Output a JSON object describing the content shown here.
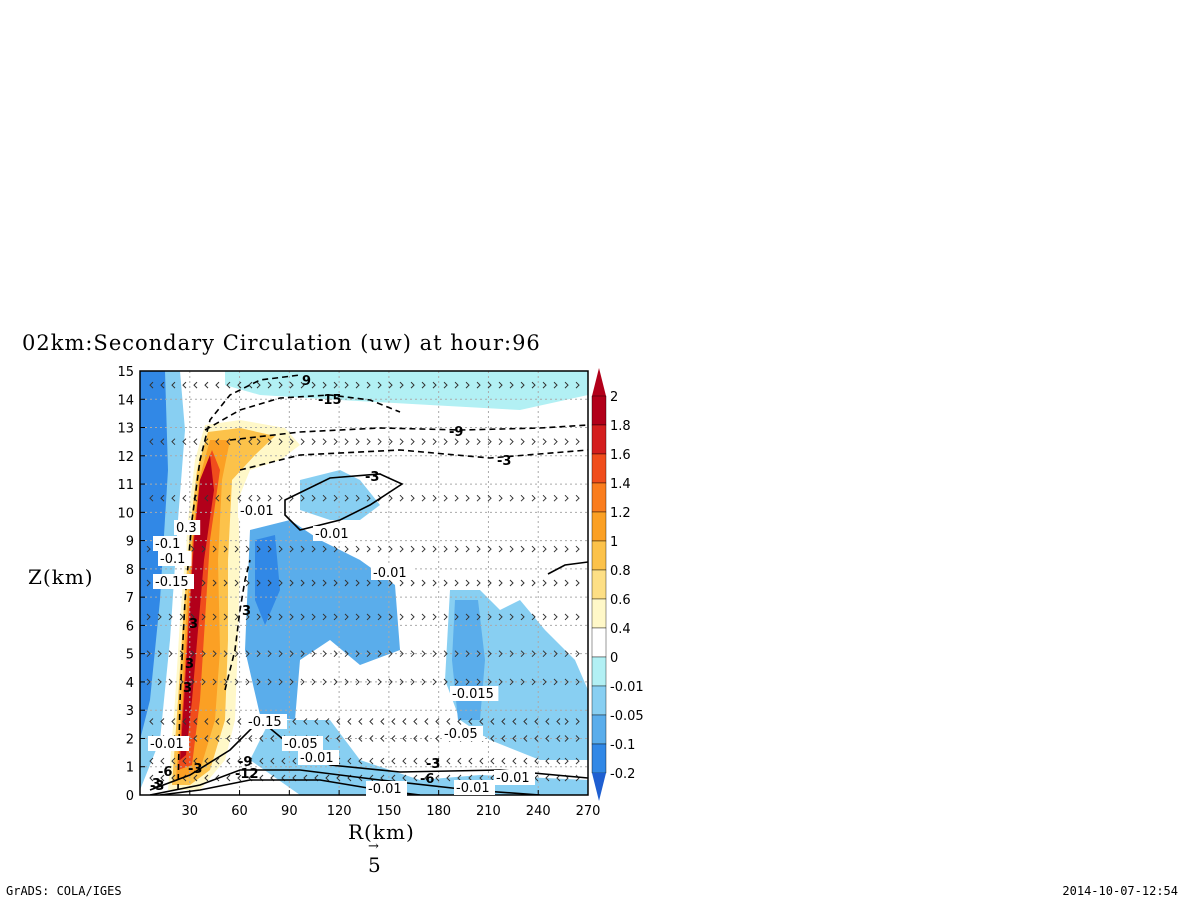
{
  "title": "02km:Secondary Circulation (uw) at hour:96",
  "footer": {
    "left": "GrADS: COLA/IGES",
    "right": "2014-10-07-12:54"
  },
  "chart_data": {
    "type": "heatmap",
    "title": "02km:Secondary Circulation (uw) at hour:96",
    "xlabel": "R(km)",
    "ylabel": "Z(km)",
    "xlim": [
      0,
      270
    ],
    "ylim": [
      0,
      15
    ],
    "x_ticks": [
      "30",
      "60",
      "90",
      "120",
      "150",
      "180",
      "210",
      "240",
      "270"
    ],
    "y_ticks": [
      "0",
      "1",
      "2",
      "3",
      "4",
      "5",
      "6",
      "7",
      "8",
      "9",
      "10",
      "11",
      "12",
      "13",
      "14",
      "15"
    ],
    "grid": true,
    "shaded_field": "w",
    "colorbar": {
      "labels": [
        "2",
        "1.8",
        "1.6",
        "1.4",
        "1.2",
        "1",
        "0.8",
        "0.6",
        "0.4",
        "0",
        "-0.01",
        "-0.05",
        "-0.1",
        "-0.2"
      ],
      "colors": [
        "#b2001a",
        "#d41e1e",
        "#f04d1c",
        "#fa7d1e",
        "#fba024",
        "#fcc24a",
        "#fddf85",
        "#fff8c8",
        "#ffffff",
        "#b2f0f4",
        "#88cff2",
        "#5aadeb",
        "#3188e6",
        "#1f5fd1"
      ],
      "extend": "both"
    },
    "contour_field": "u",
    "contour_labels": [
      "9",
      "-15",
      "-9",
      "-3",
      "-3",
      "3",
      "3",
      "3",
      "3",
      "-3",
      "-6",
      "-9",
      "-3",
      "-6",
      "-3",
      "-12",
      "3"
    ],
    "w_contour_labels": [
      "-0.01",
      "-0.01",
      "-0.01",
      "-0.01",
      "-0.015",
      "-0.05",
      "-0.15",
      "-0.05",
      "-0.01",
      "-0.01",
      "-0.01",
      "-0.1",
      "0.3",
      "-0.15",
      "-0.1",
      "-0.01"
    ],
    "vector_legend": {
      "label": "5"
    }
  },
  "icons": {
    "vector_arrow": "right-arrow-icon"
  }
}
